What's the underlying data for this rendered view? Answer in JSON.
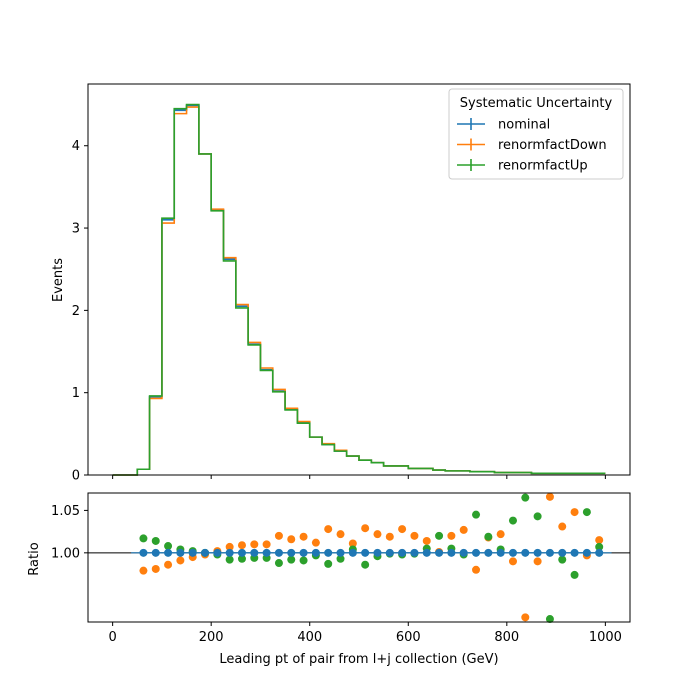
{
  "chart_data": [
    {
      "type": "step",
      "xlabel": "",
      "ylabel": "Events",
      "xlim": [
        -50,
        1050
      ],
      "ylim": [
        0,
        4.75
      ],
      "yticks": [
        "0",
        "1",
        "2",
        "3",
        "4"
      ],
      "legend": {
        "title": "Systematic Uncertainty",
        "placement": "top-right"
      },
      "bin_edges": [
        0,
        25,
        50,
        75,
        100,
        125,
        150,
        175,
        200,
        225,
        250,
        275,
        300,
        325,
        350,
        375,
        400,
        425,
        450,
        475,
        500,
        525,
        550,
        575,
        600,
        625,
        650,
        675,
        700,
        725,
        750,
        775,
        800,
        825,
        850,
        875,
        900,
        925,
        950,
        975,
        1000
      ],
      "series": [
        {
          "name": "nominal",
          "color": "#1f77b4",
          "values": [
            0.0,
            0.0,
            0.07,
            0.95,
            3.1,
            4.43,
            4.49,
            3.9,
            3.22,
            2.62,
            2.05,
            1.59,
            1.28,
            1.02,
            0.8,
            0.64,
            0.46,
            0.37,
            0.29,
            0.23,
            0.18,
            0.15,
            0.11,
            0.11,
            0.08,
            0.08,
            0.06,
            0.05,
            0.05,
            0.04,
            0.04,
            0.03,
            0.03,
            0.03,
            0.02,
            0.02,
            0.02,
            0.02,
            0.02,
            0.02
          ]
        },
        {
          "name": "renormfactDown",
          "color": "#ff7f0e",
          "values": [
            0.0,
            0.0,
            0.07,
            0.93,
            3.06,
            4.39,
            4.47,
            3.9,
            3.23,
            2.64,
            2.07,
            1.61,
            1.3,
            1.04,
            0.81,
            0.65,
            0.46,
            0.38,
            0.3,
            0.23,
            0.18,
            0.15,
            0.11,
            0.11,
            0.08,
            0.08,
            0.06,
            0.05,
            0.05,
            0.04,
            0.04,
            0.03,
            0.03,
            0.03,
            0.02,
            0.02,
            0.02,
            0.02,
            0.02,
            0.02
          ]
        },
        {
          "name": "renormfactUp",
          "color": "#2ca02c",
          "values": [
            0.0,
            0.0,
            0.07,
            0.96,
            3.12,
            4.45,
            4.5,
            3.9,
            3.21,
            2.6,
            2.03,
            1.58,
            1.27,
            1.01,
            0.79,
            0.63,
            0.46,
            0.37,
            0.29,
            0.23,
            0.18,
            0.15,
            0.11,
            0.11,
            0.08,
            0.08,
            0.06,
            0.05,
            0.05,
            0.04,
            0.04,
            0.03,
            0.03,
            0.03,
            0.02,
            0.02,
            0.02,
            0.02,
            0.02,
            0.02
          ]
        }
      ]
    },
    {
      "type": "scatter",
      "xlabel": "Leading pt of pair from l+j collection (GeV)",
      "ylabel": "Ratio",
      "xlim": [
        -50,
        1050
      ],
      "ylim": [
        0.9185,
        1.0705
      ],
      "xticks": [
        0,
        200,
        400,
        600,
        800,
        1000
      ],
      "yticks": [
        "1.00",
        "1.05"
      ],
      "reference_line": 1.0,
      "x": [
        62.5,
        87.5,
        112.5,
        137.5,
        162.5,
        187.5,
        212.5,
        237.5,
        262.5,
        287.5,
        312.5,
        337.5,
        362.5,
        387.5,
        412.5,
        437.5,
        462.5,
        487.5,
        512.5,
        537.5,
        562.5,
        587.5,
        612.5,
        637.5,
        662.5,
        687.5,
        712.5,
        737.5,
        762.5,
        787.5,
        812.5,
        837.5,
        862.5,
        887.5,
        912.5,
        937.5,
        962.5,
        987.5
      ],
      "series": [
        {
          "name": "nominal",
          "color": "#1f77b4",
          "values": [
            1.0,
            1.0,
            1.0,
            1.0,
            1.0,
            1.0,
            1.0,
            1.0,
            1.0,
            1.0,
            1.0,
            1.0,
            1.0,
            1.0,
            1.0,
            1.0,
            1.0,
            1.0,
            1.0,
            1.0,
            1.0,
            1.0,
            1.0,
            1.0,
            1.0,
            1.0,
            1.0,
            1.0,
            1.0,
            1.0,
            1.0,
            1.0,
            1.0,
            1.0,
            1.0,
            1.0,
            1.0,
            1.0
          ]
        },
        {
          "name": "renormfactDown",
          "color": "#ff7f0e",
          "values": [
            0.979,
            0.981,
            0.986,
            0.991,
            0.995,
            0.998,
            1.002,
            1.007,
            1.009,
            1.01,
            1.01,
            1.02,
            1.016,
            1.019,
            1.012,
            1.028,
            1.022,
            1.011,
            1.029,
            1.022,
            1.019,
            1.028,
            1.02,
            1.014,
            1.001,
            1.02,
            1.027,
            0.98,
            1.018,
            1.022,
            0.99,
            0.924,
            0.99,
            1.066,
            1.031,
            1.048,
            0.997,
            1.015
          ]
        },
        {
          "name": "renormfactUp",
          "color": "#2ca02c",
          "values": [
            1.017,
            1.014,
            1.008,
            1.004,
            1.002,
            1.0,
            0.998,
            0.992,
            0.993,
            0.994,
            0.994,
            0.988,
            0.992,
            0.991,
            0.997,
            0.987,
            0.993,
            1.004,
            0.986,
            0.996,
            0.999,
            0.998,
            0.999,
            1.005,
            1.02,
            1.005,
            0.998,
            1.045,
            1.019,
            1.004,
            1.038,
            1.065,
            1.043,
            0.922,
            0.992,
            0.974,
            1.048,
            1.007
          ]
        }
      ]
    }
  ]
}
